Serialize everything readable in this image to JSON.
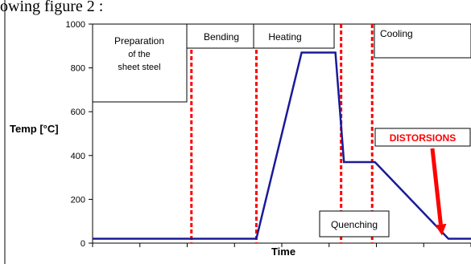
{
  "top_caption": "owing figure 2 :",
  "chart_data": {
    "type": "line",
    "title": "",
    "xlabel": "Time",
    "ylabel": "Temp [°C]",
    "ylim": [
      0,
      1000
    ],
    "yticks": [
      0,
      200,
      400,
      600,
      800,
      1000
    ],
    "grid": false,
    "series": [
      {
        "color": "#1a1a99",
        "x": [
          0,
          29,
          37,
          43,
          44.5,
          50,
          63,
          67
        ],
        "y": [
          20,
          20,
          870,
          870,
          370,
          370,
          20,
          20
        ]
      }
    ],
    "xlim": [
      0,
      67
    ],
    "stage_dividers": [
      17.5,
      29,
      44,
      49.5
    ],
    "stages": [
      {
        "key": "preparation",
        "lines": [
          "Preparation",
          "of the",
          "sheet steel"
        ]
      },
      {
        "key": "bending",
        "lines": [
          "Bending"
        ]
      },
      {
        "key": "heating",
        "lines": [
          "Heating"
        ]
      },
      {
        "key": "cooling",
        "lines": [
          "Cooling"
        ]
      },
      {
        "key": "quenching",
        "lines": [
          "Quenching"
        ]
      }
    ],
    "annotation": {
      "text": "DISTORSIONS",
      "color": "#ff0000",
      "points_to_x": 63,
      "points_to_y": 20
    }
  }
}
